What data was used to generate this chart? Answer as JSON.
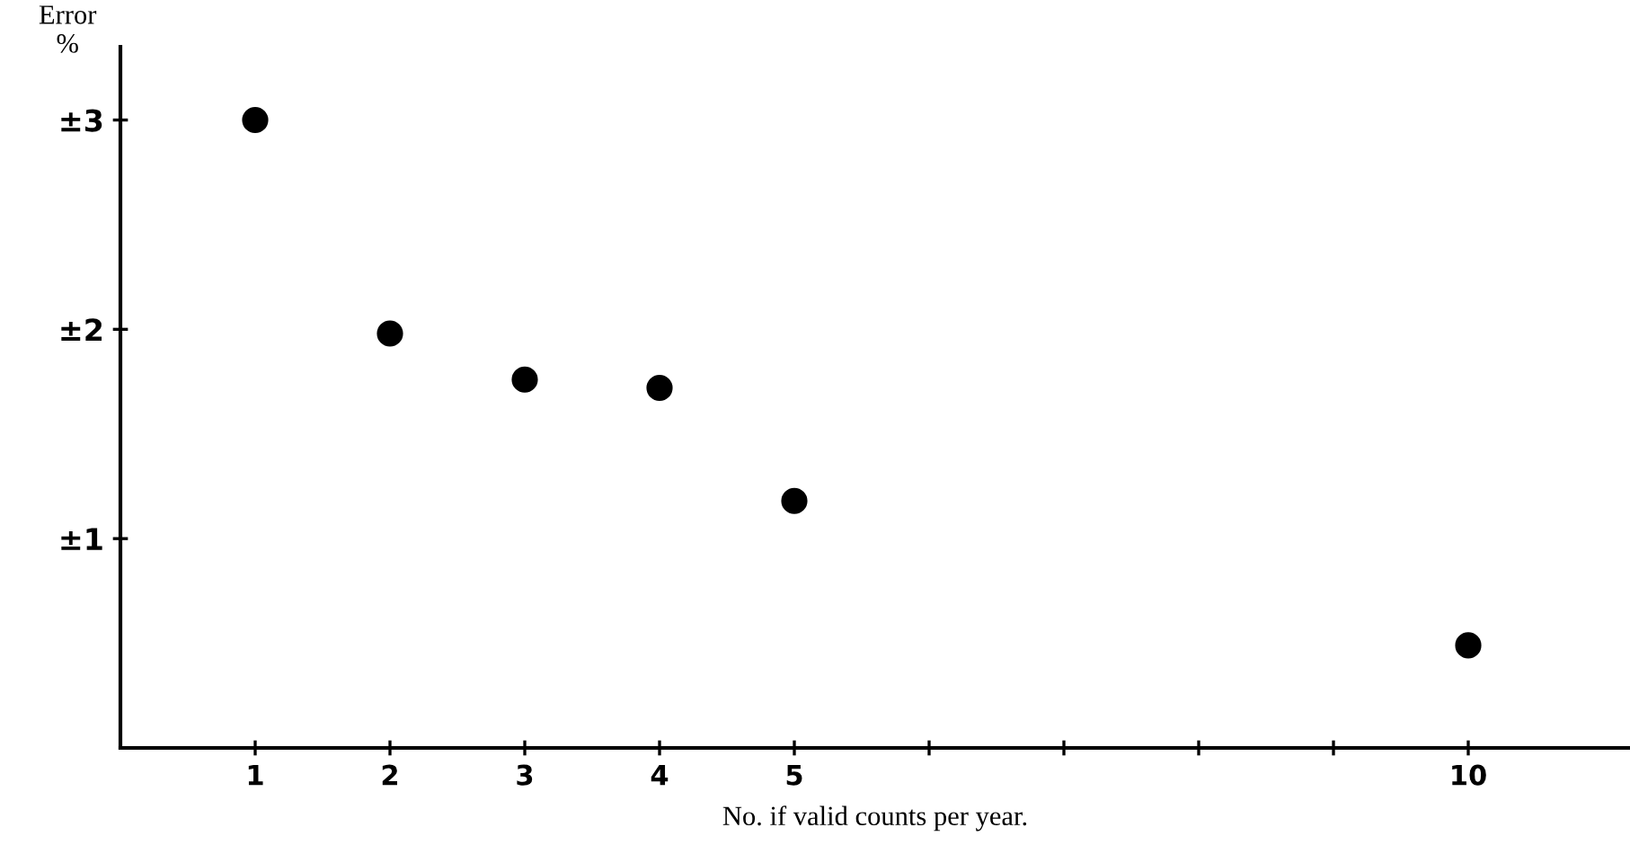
{
  "chart_data": {
    "type": "scatter",
    "xlabel": "No. if valid counts per year.",
    "ylabel": "Error\n%",
    "x": [
      1,
      2,
      3,
      4,
      5,
      10
    ],
    "series": [
      {
        "color": "#000000",
        "values": [
          3.0,
          1.98,
          1.76,
          1.72,
          1.18,
          0.49
        ]
      }
    ],
    "xlim": [
      0,
      11.2
    ],
    "xticks": [
      1,
      2,
      3,
      4,
      5,
      {
        "value": 6,
        "label": null
      },
      {
        "value": 7,
        "label": null
      },
      {
        "value": 8,
        "label": null
      },
      {
        "value": 9,
        "label": null
      },
      10
    ],
    "ylim": [
      0,
      3.35
    ],
    "yticks": [
      {
        "value": 1,
        "label": "±1"
      },
      {
        "value": 2,
        "label": "±2"
      },
      {
        "value": 3,
        "label": "±3"
      }
    ],
    "marker": "circle",
    "grid": false,
    "legend": false
  }
}
